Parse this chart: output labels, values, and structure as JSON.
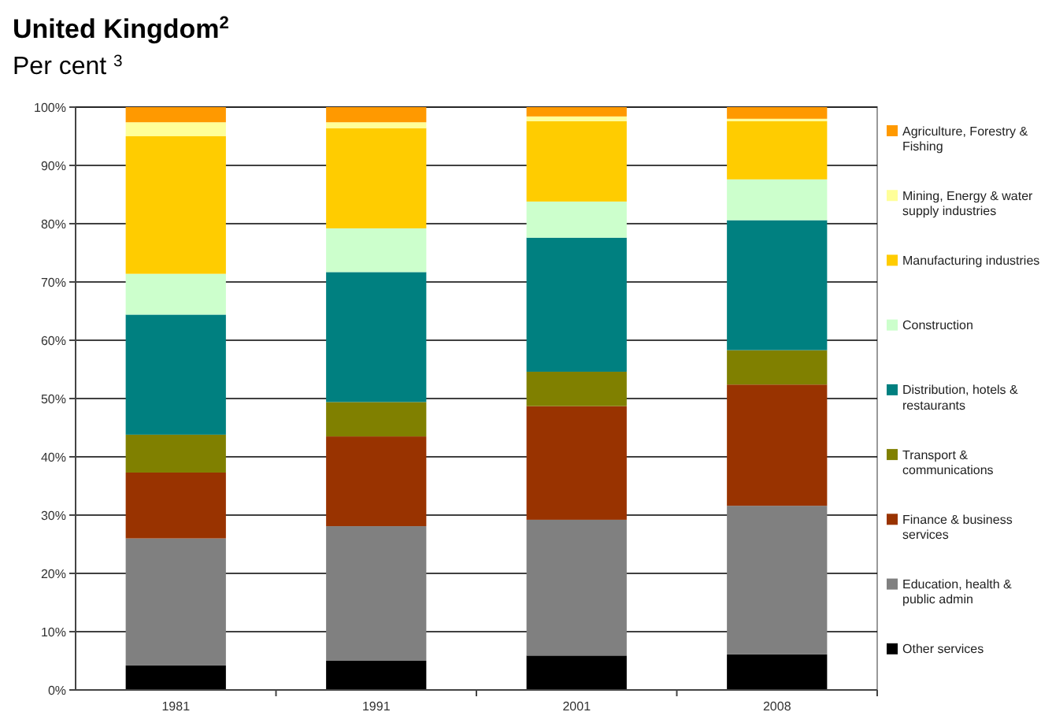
{
  "chart_data": {
    "type": "bar",
    "title": "United Kingdom$^{2}$",
    "subtitle": "Per cent $^{3}$",
    "categories": [
      "1981",
      "1991",
      "2001",
      "2008"
    ],
    "stacked": true,
    "series": [
      {
        "name": "Other services",
        "color": "#000000",
        "values": [
          4.2,
          5.0,
          5.9,
          6.1
        ]
      },
      {
        "name": "Education, health & public admin",
        "color": "#808080",
        "values": [
          21.8,
          23.1,
          23.3,
          25.5
        ]
      },
      {
        "name": "Finance & business services",
        "color": "#993300",
        "values": [
          11.3,
          15.4,
          19.5,
          20.8
        ]
      },
      {
        "name": "Transport & communications",
        "color": "#808000",
        "values": [
          6.5,
          5.9,
          5.9,
          5.9
        ]
      },
      {
        "name": "Distribution, hotels & restaurants",
        "color": "#008080",
        "values": [
          20.6,
          22.3,
          23.0,
          22.3
        ]
      },
      {
        "name": "Construction",
        "color": "#ccffcc",
        "values": [
          7.0,
          7.5,
          6.2,
          7.0
        ]
      },
      {
        "name": "Manufacturing industries",
        "color": "#ffcc00",
        "values": [
          23.6,
          17.2,
          13.8,
          10.0
        ]
      },
      {
        "name": "Mining, Energy & water supply industries",
        "color": "#ffff99",
        "values": [
          2.4,
          1.0,
          0.8,
          0.4
        ]
      },
      {
        "name": "Agriculture, Forestry & Fishing",
        "color": "#ff9900",
        "values": [
          2.6,
          2.6,
          1.6,
          2.0
        ]
      }
    ],
    "ylim": [
      0,
      100
    ],
    "yticks": [
      {
        "value": 0,
        "label": "0%"
      },
      {
        "value": 10,
        "label": "10%"
      },
      {
        "value": 20,
        "label": "20%"
      },
      {
        "value": 30,
        "label": "30%"
      },
      {
        "value": 40,
        "label": "40%"
      },
      {
        "value": 50,
        "label": "50%"
      },
      {
        "value": 60,
        "label": "60%"
      },
      {
        "value": 70,
        "label": "70%"
      },
      {
        "value": 80,
        "label": "80%"
      },
      {
        "value": 90,
        "label": "90%"
      },
      {
        "value": 100,
        "label": "100%"
      }
    ],
    "grid": "y",
    "legend": "right"
  }
}
